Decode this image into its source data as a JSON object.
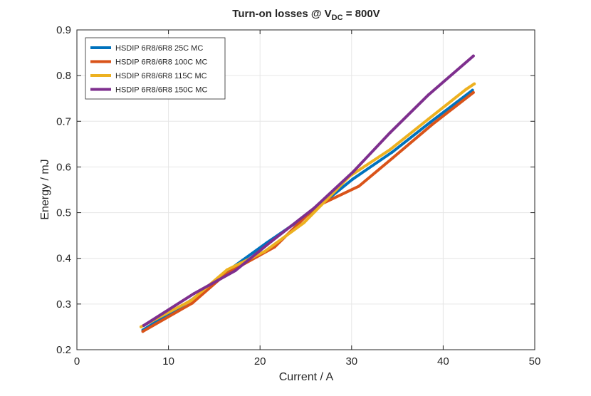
{
  "chart_data": {
    "type": "line",
    "title": "Turn-on losses @ V",
    "title_subscript": "DC",
    "title_suffix": " = 800V",
    "xlabel": "Current / A",
    "ylabel": "Energy / mJ",
    "xlim": [
      0,
      50
    ],
    "ylim": [
      0.2,
      0.9
    ],
    "xticks": [
      "0",
      "10",
      "20",
      "30",
      "40",
      "50"
    ],
    "yticks": [
      "0.2",
      "0.3",
      "0.4",
      "0.5",
      "0.6",
      "0.7",
      "0.8",
      "0.9"
    ],
    "xtick_values": [
      0,
      10,
      20,
      30,
      40,
      50
    ],
    "ytick_values": [
      0.2,
      0.3,
      0.4,
      0.5,
      0.6,
      0.7,
      0.8,
      0.9
    ],
    "grid": true,
    "legend_position": "top-left",
    "series": [
      {
        "name": "HSDIP 6R8/6R8 25C MC",
        "color": "#0072BD",
        "x": [
          7.2,
          12.6,
          16.3,
          20.8,
          25.9,
          30.1,
          34.4,
          38.6,
          43.2
        ],
        "y": [
          0.243,
          0.31,
          0.37,
          0.435,
          0.505,
          0.573,
          0.632,
          0.698,
          0.768
        ]
      },
      {
        "name": "HSDIP 6R8/6R8 100C MC",
        "color": "#D95319",
        "x": [
          7.2,
          12.6,
          16.2,
          21.6,
          26.1,
          30.8,
          34.5,
          38.8,
          43.3
        ],
        "y": [
          0.24,
          0.302,
          0.365,
          0.425,
          0.513,
          0.558,
          0.62,
          0.693,
          0.763
        ]
      },
      {
        "name": "HSDIP 6R8/6R8 115C MC",
        "color": "#EDB120",
        "x": [
          7.0,
          12.5,
          16.4,
          20.5,
          24.8,
          29.8,
          34.2,
          38.4,
          42.5,
          43.4
        ],
        "y": [
          0.25,
          0.308,
          0.375,
          0.415,
          0.478,
          0.58,
          0.638,
          0.705,
          0.77,
          0.782
        ]
      },
      {
        "name": "HSDIP 6R8/6R8 150C MC",
        "color": "#7E2F8E",
        "x": [
          7.3,
          12.8,
          17.3,
          21.3,
          25.9,
          30.2,
          34.2,
          38.4,
          43.3
        ],
        "y": [
          0.253,
          0.323,
          0.373,
          0.438,
          0.51,
          0.59,
          0.675,
          0.758,
          0.843
        ]
      }
    ]
  }
}
